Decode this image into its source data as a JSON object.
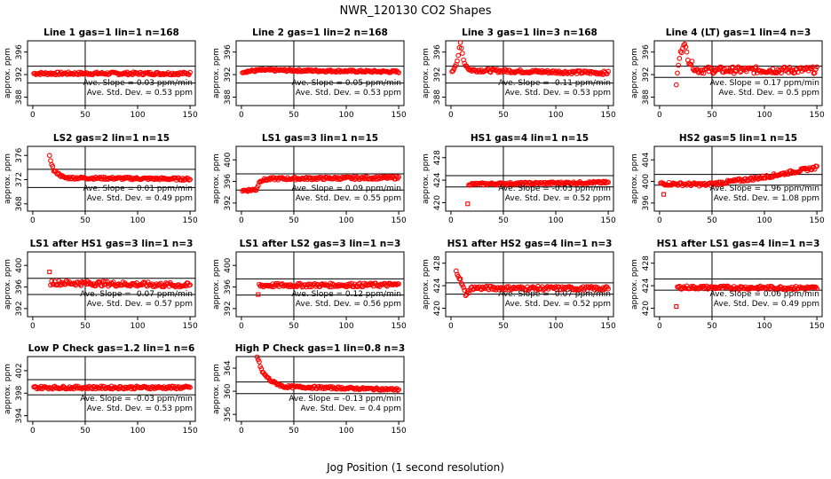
{
  "figure": {
    "title": "NWR_120130  CO2 Shapes",
    "xlabel": "Jog Position (1 second resolution)"
  },
  "colors": {
    "points": "#ff0000",
    "axis": "#000000"
  },
  "chart_data": [
    {
      "type": "scatter",
      "title": "Line 1 gas=1 lin=1 n=168",
      "ylabel": "approx. ppm",
      "xlim": [
        -5,
        155
      ],
      "ylim": [
        386.5,
        398
      ],
      "yticks": [
        388,
        392,
        396
      ],
      "xticks": [
        0,
        50,
        100,
        150
      ],
      "hlines": [
        393.5,
        390.5
      ],
      "vline": 50,
      "slope": "Ave. Slope =  0.03  ppm/min",
      "stddev": "Ave. Std. Dev. =  0.53  ppm",
      "series": [
        {
          "x_start": 1,
          "x_end": 150,
          "segments": [
            [
              1,
              392.2
            ],
            [
              150,
              392.2
            ]
          ],
          "noise": 0.25
        }
      ]
    },
    {
      "type": "scatter",
      "title": "Line 2 gas=1 lin=2 n=168",
      "ylabel": "approx. ppm",
      "xlim": [
        -5,
        155
      ],
      "ylim": [
        386.5,
        398
      ],
      "yticks": [
        388,
        392,
        396
      ],
      "xticks": [
        0,
        50,
        100,
        150
      ],
      "hlines": [
        393.5,
        390.5
      ],
      "vline": 50,
      "slope": "Ave. Slope =  0.05  ppm/min",
      "stddev": "Ave. Std. Dev. =  0.53  ppm",
      "series": [
        {
          "x_start": 1,
          "x_end": 150,
          "segments": [
            [
              1,
              392.5
            ],
            [
              20,
              392.8
            ],
            [
              150,
              392.5
            ]
          ],
          "noise": 0.2
        }
      ]
    },
    {
      "type": "scatter",
      "title": "Line 3 gas=1 lin=3 n=168",
      "ylabel": "approx. ppm",
      "xlim": [
        -5,
        155
      ],
      "ylim": [
        386.5,
        398
      ],
      "yticks": [
        388,
        392,
        396
      ],
      "xticks": [
        0,
        50,
        100,
        150
      ],
      "hlines": [
        393.5,
        390.5
      ],
      "vline": 50,
      "slope": "Ave. Slope =  -0.11  ppm/min",
      "stddev": "Ave. Std. Dev. =  0.53  ppm",
      "series": [
        {
          "x_start": 1,
          "x_end": 150,
          "segments": [
            [
              1,
              392.3
            ],
            [
              6,
              394.5
            ],
            [
              9,
              397.5
            ],
            [
              13,
              394
            ],
            [
              18,
              392.8
            ],
            [
              60,
              392.6
            ],
            [
              150,
              392.3
            ]
          ],
          "noise": 0.3
        }
      ]
    },
    {
      "type": "scatter",
      "title": "Line 4 (LT) gas=1 lin=4 n=3",
      "ylabel": "approx. ppm",
      "xlim": [
        -5,
        155
      ],
      "ylim": [
        386.5,
        398
      ],
      "yticks": [
        388,
        392,
        396
      ],
      "xticks": [
        0,
        50,
        100,
        150
      ],
      "hlines": [
        393.5,
        391.5
      ],
      "vline": 50,
      "slope": "Ave. Slope =  0.17  ppm/min",
      "stddev": "Ave. Std. Dev. =  0.5  ppm",
      "series": [
        {
          "x_start": 16,
          "x_end": 150,
          "segments": [
            [
              16,
              390.5
            ],
            [
              19,
              395
            ],
            [
              23,
              397.8
            ],
            [
              28,
              394.5
            ],
            [
              35,
              392.8
            ],
            [
              150,
              392.8
            ]
          ],
          "noise": 0.6
        }
      ]
    },
    {
      "type": "scatter",
      "title": "LS2 gas=2 lin=1 n=15",
      "ylabel": "approx. ppm",
      "xlim": [
        -5,
        155
      ],
      "ylim": [
        366.8,
        377.5
      ],
      "yticks": [
        368,
        372,
        376
      ],
      "xticks": [
        0,
        50,
        100,
        150
      ],
      "hlines": [
        373.7,
        370.7
      ],
      "vline": 50,
      "slope": "Ave. Slope =  0.01  ppm/min",
      "stddev": "Ave. Std. Dev. =  0.49  ppm",
      "series": [
        {
          "x_start": 16,
          "x_end": 150,
          "segments": [
            [
              16,
              375.8
            ],
            [
              20,
              373.5
            ],
            [
              30,
              372.3
            ],
            [
              150,
              372.1
            ]
          ],
          "noise": 0.2
        }
      ]
    },
    {
      "type": "scatter",
      "title": "LS1 gas=3 lin=1 n=15",
      "ylabel": "approx. ppm",
      "xlim": [
        -5,
        155
      ],
      "ylim": [
        390.5,
        402.5
      ],
      "yticks": [
        392,
        396,
        400
      ],
      "xticks": [
        0,
        50,
        100,
        150
      ],
      "hlines": [
        397.4,
        394.4
      ],
      "vline": 50,
      "slope": "Ave. Slope =  0.09  ppm/min",
      "stddev": "Ave. Std. Dev. =  0.55  ppm",
      "series": [
        {
          "x_start": 1,
          "x_end": 150,
          "segments": [
            [
              1,
              394.3
            ],
            [
              14,
              394.5
            ],
            [
              18,
              396.2
            ],
            [
              30,
              396.5
            ],
            [
              150,
              396.7
            ]
          ],
          "noise": 0.25
        }
      ]
    },
    {
      "type": "scatter",
      "title": "HS1 gas=4 lin=1 n=15",
      "ylabel": "approx. ppm",
      "xlim": [
        -5,
        155
      ],
      "ylim": [
        418.5,
        430
      ],
      "yticks": [
        420,
        424,
        428
      ],
      "xticks": [
        0,
        50,
        100,
        150
      ],
      "hlines": [
        424.8,
        422.8
      ],
      "vline": 50,
      "slope": "Ave. Slope =  -0.03  ppm/min",
      "stddev": "Ave. Std. Dev. =  0.52  ppm",
      "outliers": [
        [
          16,
          419.8
        ]
      ],
      "series": [
        {
          "x_start": 17,
          "x_end": 150,
          "segments": [
            [
              17,
              423.3
            ],
            [
              150,
              423.6
            ]
          ],
          "noise": 0.2
        }
      ]
    },
    {
      "type": "scatter",
      "title": "HS2 gas=5 lin=1 n=15",
      "ylabel": "approx. ppm",
      "xlim": [
        -5,
        155
      ],
      "ylim": [
        394.5,
        406.5
      ],
      "yticks": [
        396,
        400,
        404
      ],
      "xticks": [
        0,
        50,
        100,
        150
      ],
      "hlines": [
        401.3,
        399.3
      ],
      "vline": 50,
      "slope": "Ave. Slope =  1.96  ppm/min",
      "stddev": "Ave. Std. Dev. =  1.08  ppm",
      "outliers": [
        [
          4,
          397.6
        ]
      ],
      "series": [
        {
          "x_start": 1,
          "x_end": 150,
          "segments": [
            [
              1,
              399.6
            ],
            [
              45,
              399.4
            ],
            [
              100,
              400.8
            ],
            [
              150,
              402.6
            ]
          ],
          "noise": 0.3
        }
      ]
    },
    {
      "type": "scatter",
      "title": "LS1 after HS1 gas=3 lin=1 n=3",
      "ylabel": "approx. ppm",
      "xlim": [
        -5,
        155
      ],
      "ylim": [
        390.5,
        402.5
      ],
      "yticks": [
        392,
        396,
        400
      ],
      "xticks": [
        0,
        50,
        100,
        150
      ],
      "hlines": [
        397.6,
        394.6
      ],
      "vline": 50,
      "slope": "Ave. Slope =  -0.07  ppm/min",
      "stddev": "Ave. Std. Dev. =  0.57  ppm",
      "outliers": [
        [
          16,
          398.8
        ]
      ],
      "series": [
        {
          "x_start": 17,
          "x_end": 150,
          "segments": [
            [
              17,
              396.8
            ],
            [
              150,
              396.3
            ]
          ],
          "noise": 0.45
        }
      ]
    },
    {
      "type": "scatter",
      "title": "LS1 after LS2 gas=3 lin=1 n=3",
      "ylabel": "approx. ppm",
      "xlim": [
        -5,
        155
      ],
      "ylim": [
        390.5,
        402.5
      ],
      "yticks": [
        392,
        396,
        400
      ],
      "xticks": [
        0,
        50,
        100,
        150
      ],
      "hlines": [
        397.5,
        394.5
      ],
      "vline": 50,
      "slope": "Ave. Slope =  0.12  ppm/min",
      "stddev": "Ave. Std. Dev. =  0.56  ppm",
      "outliers": [
        [
          16,
          394.6
        ]
      ],
      "series": [
        {
          "x_start": 17,
          "x_end": 150,
          "segments": [
            [
              17,
              396.3
            ],
            [
              150,
              396.4
            ]
          ],
          "noise": 0.35
        }
      ]
    },
    {
      "type": "scatter",
      "title": "HS1 after HS2 gas=4 lin=1 n=3",
      "ylabel": "approx. ppm",
      "xlim": [
        -5,
        155
      ],
      "ylim": [
        418.5,
        430
      ],
      "yticks": [
        420,
        424,
        428
      ],
      "xticks": [
        0,
        50,
        100,
        150
      ],
      "hlines": [
        424.5,
        422.5
      ],
      "vline": 50,
      "slope": "Ave. Slope =  -0.07  ppm/min",
      "stddev": "Ave. Std. Dev. =  0.52  ppm",
      "series": [
        {
          "x_start": 5,
          "x_end": 150,
          "segments": [
            [
              5,
              426.8
            ],
            [
              10,
              424.5
            ],
            [
              14,
              422.5
            ],
            [
              20,
              423.6
            ],
            [
              150,
              423.5
            ]
          ],
          "noise": 0.35
        }
      ]
    },
    {
      "type": "scatter",
      "title": "HS1 after LS1 gas=4 lin=1 n=3",
      "ylabel": "approx. ppm",
      "xlim": [
        -5,
        155
      ],
      "ylim": [
        418.5,
        430
      ],
      "yticks": [
        420,
        424,
        428
      ],
      "xticks": [
        0,
        50,
        100,
        150
      ],
      "hlines": [
        425.2,
        423.2
      ],
      "vline": 50,
      "slope": "Ave. Slope =  0.06  ppm/min",
      "stddev": "Ave. Std. Dev. =  0.49  ppm",
      "outliers": [
        [
          16,
          420.3
        ]
      ],
      "series": [
        {
          "x_start": 17,
          "x_end": 150,
          "segments": [
            [
              17,
              423.7
            ],
            [
              150,
              423.6
            ]
          ],
          "noise": 0.3
        }
      ]
    },
    {
      "type": "scatter",
      "title": "Low P Check gas=1.2 lin=1 n=6",
      "ylabel": "approx. ppm",
      "xlim": [
        -5,
        155
      ],
      "ylim": [
        393,
        404.5
      ],
      "yticks": [
        394,
        398,
        402
      ],
      "xticks": [
        0,
        50,
        100,
        150
      ],
      "hlines": [
        400.4,
        397.7
      ],
      "vline": 50,
      "slope": "Ave. Slope =  -0.03  ppm/min",
      "stddev": "Ave. Std. Dev. =  0.53  ppm",
      "series": [
        {
          "x_start": 1,
          "x_end": 150,
          "segments": [
            [
              1,
              399.0
            ],
            [
              150,
              399.0
            ]
          ],
          "noise": 0.25
        }
      ]
    },
    {
      "type": "scatter",
      "title": "High P Check gas=1 lin=0.8 n=3",
      "ylabel": "approx. ppm",
      "xlim": [
        -5,
        155
      ],
      "ylim": [
        354.8,
        366
      ],
      "yticks": [
        356,
        360,
        364
      ],
      "xticks": [
        0,
        50,
        100,
        150
      ],
      "hlines": [
        361.6,
        359.6
      ],
      "vline": 50,
      "slope": "Ave. Slope =  -0.13  ppm/min",
      "stddev": "Ave. Std. Dev. =  0.4  ppm",
      "series": [
        {
          "x_start": 15,
          "x_end": 150,
          "segments": [
            [
              15,
              366
            ],
            [
              20,
              363.3
            ],
            [
              28,
              361.8
            ],
            [
              40,
              360.8
            ],
            [
              150,
              360.3
            ]
          ],
          "noise": 0.2
        }
      ]
    }
  ]
}
